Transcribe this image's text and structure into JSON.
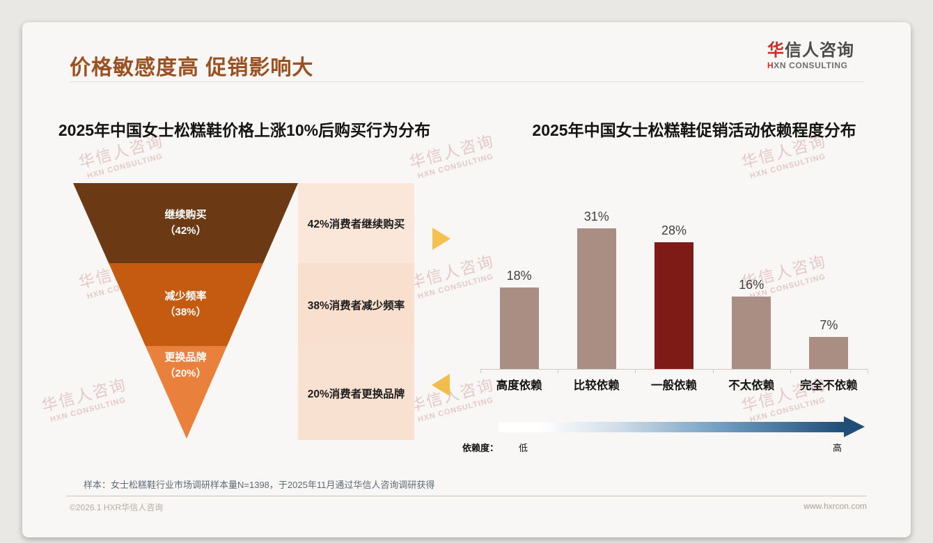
{
  "page": {
    "title": "价格敏感度高 促销影响大",
    "logo": {
      "zh_accent": "华",
      "zh_rest": "信人咨询",
      "en_accent": "H",
      "en_rest": "XN CONSULTING"
    },
    "watermark": {
      "line1": "华信人咨询",
      "line2": "HXN CONSULTING"
    },
    "footer": {
      "sample_note": "样本：女士松糕鞋行业市场调研样本量N=1398，于2025年11月通过华信人咨询调研获得",
      "copyright": "©2026.1 HXR华信人咨询",
      "website": "www.hxrcon.com"
    }
  },
  "colors": {
    "title_brown": "#9B5020",
    "logo_red": "#CE2B23",
    "funnel_segments": [
      "#6B3A15",
      "#C55A11",
      "#E9813D"
    ],
    "panel_backgrounds": [
      "#FBE7DA",
      "#F8DFCE",
      "#F9E1D1"
    ],
    "bar": "#AA8E84",
    "bar_highlight": "#7F1B17",
    "arrow_yellow": "#F4C24D",
    "gradient_dark_blue": "#1F4E79"
  },
  "chart_data": [
    {
      "type": "funnel",
      "title": "2025年中国女士松糕鞋价格上涨10%后购买行为分布",
      "categories": [
        "继续购买",
        "减少频率",
        "更换品牌"
      ],
      "values": [
        42,
        38,
        20
      ],
      "value_labels": [
        "（42%）",
        "（38%）",
        "（20%）"
      ],
      "annotations": [
        "42%消费者继续购买",
        "38%消费者减少频率",
        "20%消费者更换品牌"
      ]
    },
    {
      "type": "bar",
      "title": "2025年中国女士松糕鞋促销活动依赖程度分布",
      "categories": [
        "高度依赖",
        "比较依赖",
        "一般依赖",
        "不太依赖",
        "完全不依赖"
      ],
      "values": [
        18,
        31,
        28,
        16,
        7
      ],
      "value_labels": [
        "18%",
        "31%",
        "28%",
        "16%",
        "7%"
      ],
      "highlight_index": 2,
      "ylim": [
        0,
        35
      ],
      "grid": false,
      "axis_note": {
        "label": "依赖度：",
        "low": "低",
        "high": "高"
      }
    }
  ]
}
